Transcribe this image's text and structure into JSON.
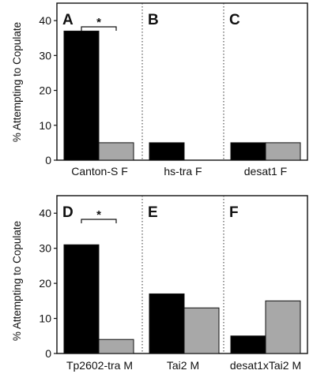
{
  "chart_data": [
    {
      "type": "bar",
      "ylabel": "% Attempting to Copulate",
      "ylim": [
        0,
        45
      ],
      "yticks": [
        0,
        10,
        20,
        30,
        40
      ],
      "series_colors": [
        "#000000",
        "#a8a8a8"
      ],
      "panels": [
        {
          "letter": "A",
          "category": "Canton-S F",
          "values": [
            37,
            5
          ],
          "significance": "*"
        },
        {
          "letter": "B",
          "category": "hs-tra F",
          "values": [
            5,
            0
          ],
          "significance": ""
        },
        {
          "letter": "C",
          "category": "desat1 F",
          "values": [
            5,
            5
          ],
          "significance": ""
        }
      ]
    },
    {
      "type": "bar",
      "ylabel": "% Attempting to Copulate",
      "ylim": [
        0,
        45
      ],
      "yticks": [
        0,
        10,
        20,
        30,
        40
      ],
      "series_colors": [
        "#000000",
        "#a8a8a8"
      ],
      "panels": [
        {
          "letter": "D",
          "category": "Tp2602-tra M",
          "values": [
            31,
            4
          ],
          "significance": "*"
        },
        {
          "letter": "E",
          "category": "Tai2 M",
          "values": [
            17,
            13
          ],
          "significance": ""
        },
        {
          "letter": "F",
          "category": "desat1xTai2 M",
          "values": [
            5,
            15
          ],
          "significance": ""
        }
      ]
    }
  ]
}
